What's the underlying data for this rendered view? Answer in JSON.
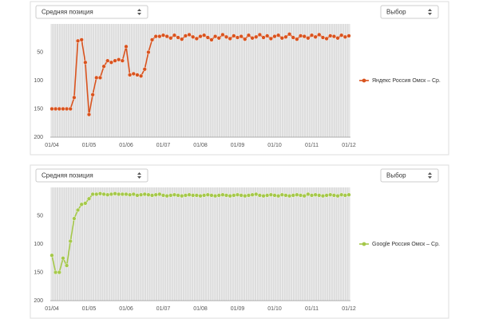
{
  "panels": [
    {
      "metric_select": "Средняя позиция",
      "choice_select": "Выбор"
    },
    {
      "metric_select": "Средняя позиция",
      "choice_select": "Выбор"
    }
  ],
  "chart_data": [
    {
      "type": "line",
      "categories": [
        "01/04",
        null,
        null,
        null,
        null,
        null,
        null,
        null,
        null,
        null,
        "01/05",
        null,
        null,
        null,
        null,
        null,
        null,
        null,
        null,
        null,
        "01/06",
        null,
        null,
        null,
        null,
        null,
        null,
        null,
        null,
        null,
        "01/07",
        null,
        null,
        null,
        null,
        null,
        null,
        null,
        null,
        null,
        "01/08",
        null,
        null,
        null,
        null,
        null,
        null,
        null,
        null,
        null,
        "01/09",
        null,
        null,
        null,
        null,
        null,
        null,
        null,
        null,
        null,
        "01/10",
        null,
        null,
        null,
        null,
        null,
        null,
        null,
        null,
        null,
        "01/11",
        null,
        null,
        null,
        null,
        null,
        null,
        null,
        null,
        null,
        "01/12"
      ],
      "series": [
        {
          "name": "Яндекс Россия Омск – Ср.",
          "color": "#d9531e",
          "values": [
            150,
            150,
            150,
            150,
            150,
            150,
            130,
            30,
            28,
            68,
            160,
            125,
            95,
            95,
            75,
            65,
            68,
            65,
            63,
            65,
            40,
            90,
            88,
            90,
            92,
            80,
            50,
            28,
            22,
            22,
            20,
            22,
            25,
            20,
            24,
            27,
            21,
            19,
            23,
            26,
            22,
            20,
            24,
            28,
            22,
            25,
            19,
            23,
            26,
            21,
            24,
            22,
            27,
            20,
            25,
            23,
            19,
            24,
            21,
            26,
            22,
            20,
            25,
            23,
            18,
            24,
            27,
            21,
            22,
            25,
            20,
            23,
            19,
            24,
            26,
            21,
            22,
            25,
            20,
            23,
            21
          ]
        }
      ],
      "ylim": [
        200,
        0
      ],
      "yticks": [
        50,
        100,
        150,
        200
      ],
      "grid": true,
      "legend": "right"
    },
    {
      "type": "line",
      "categories": [
        "01/04",
        null,
        null,
        null,
        null,
        null,
        null,
        null,
        null,
        null,
        "01/05",
        null,
        null,
        null,
        null,
        null,
        null,
        null,
        null,
        null,
        "01/06",
        null,
        null,
        null,
        null,
        null,
        null,
        null,
        null,
        null,
        "01/07",
        null,
        null,
        null,
        null,
        null,
        null,
        null,
        null,
        null,
        "01/08",
        null,
        null,
        null,
        null,
        null,
        null,
        null,
        null,
        null,
        "01/09",
        null,
        null,
        null,
        null,
        null,
        null,
        null,
        null,
        null,
        "01/10",
        null,
        null,
        null,
        null,
        null,
        null,
        null,
        null,
        null,
        "01/11",
        null,
        null,
        null,
        null,
        null,
        null,
        null,
        null,
        null,
        "01/12"
      ],
      "series": [
        {
          "name": "Google Россия Омск – Ср.",
          "color": "#a5c84a",
          "values": [
            120,
            150,
            150,
            125,
            138,
            95,
            55,
            40,
            30,
            28,
            20,
            12,
            12,
            11,
            12,
            13,
            12,
            11,
            12,
            12,
            12,
            13,
            12,
            14,
            13,
            12,
            13,
            14,
            13,
            12,
            14,
            15,
            14,
            13,
            14,
            15,
            14,
            13,
            14,
            14,
            15,
            14,
            13,
            14,
            15,
            14,
            13,
            14,
            15,
            14,
            13,
            14,
            15,
            14,
            13,
            12,
            14,
            15,
            14,
            13,
            14,
            15,
            13,
            14,
            15,
            14,
            13,
            14,
            15,
            12,
            14,
            13,
            14,
            15,
            14,
            13,
            14,
            15,
            13,
            14,
            13
          ]
        }
      ],
      "ylim": [
        200,
        0
      ],
      "yticks": [
        50,
        100,
        150,
        200
      ],
      "grid": true,
      "legend": "right"
    }
  ]
}
